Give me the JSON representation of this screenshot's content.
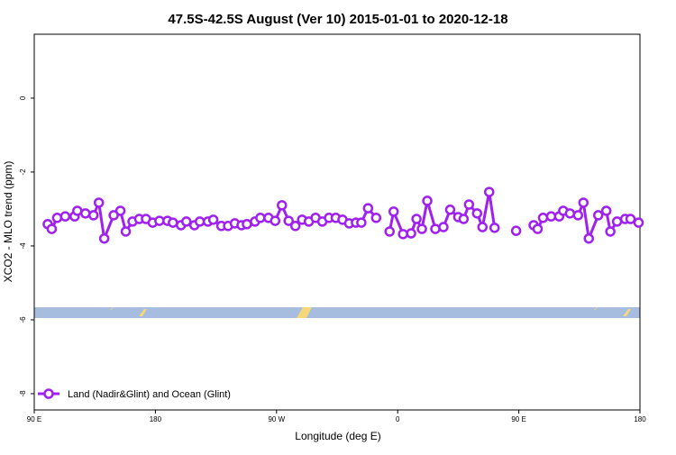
{
  "chart_data": {
    "type": "line",
    "title": "47.5S-42.5S August (Ver 10)   2015-01-01 to 2020-12-18",
    "xlabel": "Longitude (deg E)",
    "ylabel": "XCO2 - MLO trend (ppm)",
    "xlim": [
      90,
      540
    ],
    "ylim": [
      -8.44,
      1.73
    ],
    "xticks": [
      {
        "value": 90,
        "label": "90 E"
      },
      180,
      {
        "value": 270,
        "label": "90 W"
      },
      {
        "value": 360,
        "label": "0"
      },
      {
        "value": 450,
        "label": "90 E"
      },
      {
        "value": 540,
        "label": "180"
      }
    ],
    "yticks": [
      0,
      -2,
      -4,
      -6,
      -8
    ],
    "legend": "lower left",
    "x": [
      100,
      103,
      107,
      113,
      120,
      122,
      128,
      134,
      138,
      142,
      149,
      154,
      158,
      163,
      168,
      173,
      178,
      183,
      189,
      193,
      199,
      203,
      209,
      213,
      219,
      223,
      229,
      234,
      239,
      244,
      248,
      254,
      258,
      264,
      269,
      274,
      279,
      284,
      289,
      294,
      299,
      304,
      309,
      314,
      319,
      324,
      329,
      333,
      338,
      344,
      349,
      354,
      357,
      364,
      370,
      374,
      378,
      382,
      388,
      394,
      399,
      405,
      409,
      413,
      419,
      423,
      428,
      432,
      440,
      448,
      455,
      461,
      464,
      468,
      474,
      480,
      483,
      488,
      494,
      498,
      502,
      509,
      515,
      518,
      523,
      529,
      533,
      539
    ],
    "series": [
      {
        "name": "Land (Nadir&Glint) and Ocean (Glint)",
        "color": "#a020f0",
        "values": [
          -3.41,
          -3.54,
          -3.24,
          -3.2,
          -3.2,
          -3.05,
          -3.12,
          -3.17,
          -2.83,
          -3.8,
          -3.17,
          -3.05,
          -3.61,
          -3.34,
          -3.27,
          -3.27,
          -3.37,
          -3.32,
          -3.32,
          -3.37,
          -3.44,
          -3.34,
          -3.44,
          -3.34,
          -3.34,
          -3.29,
          -3.46,
          -3.46,
          -3.39,
          -3.44,
          -3.41,
          -3.34,
          -3.24,
          -3.24,
          -3.32,
          -2.9,
          -3.32,
          -3.46,
          -3.29,
          -3.34,
          -3.24,
          -3.34,
          -3.24,
          -3.24,
          -3.29,
          -3.39,
          -3.37,
          -3.37,
          -2.98,
          -3.24,
          null,
          -3.61,
          -3.07,
          -3.68,
          -3.66,
          -3.27,
          -3.54,
          -2.78,
          -3.54,
          -3.49,
          -3.02,
          -3.22,
          -3.27,
          -2.88,
          -3.12,
          -3.49,
          -2.54,
          -3.51,
          null,
          -3.59,
          null,
          -3.44,
          -3.54,
          -3.24,
          -3.2,
          -3.2,
          -3.05,
          -3.12,
          -3.17,
          -2.83,
          -3.8,
          -3.17,
          -3.05,
          -3.61,
          -3.34,
          -3.27,
          -3.27,
          -3.37
        ]
      }
    ]
  }
}
